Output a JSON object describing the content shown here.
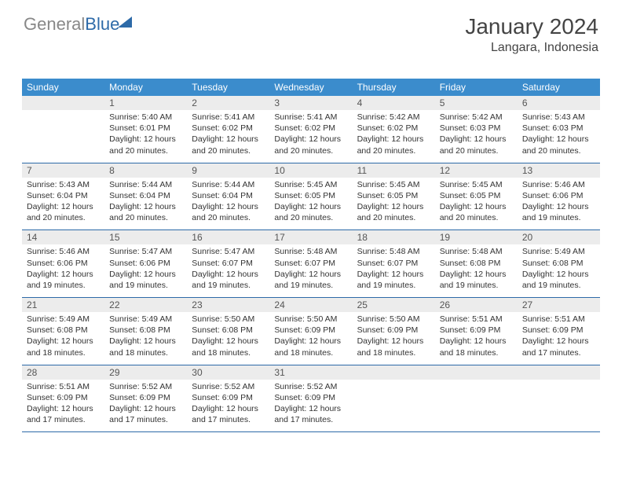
{
  "logo": {
    "part1": "General",
    "part2": "Blue"
  },
  "title": "January 2024",
  "location": "Langara, Indonesia",
  "colors": {
    "header_bg": "#3b8ccc",
    "header_text": "#ffffff",
    "daynum_bg": "#ececec",
    "week_border": "#2d6aa8",
    "text": "#333333",
    "logo_gray": "#888888",
    "logo_blue": "#2d6aa8"
  },
  "day_names": [
    "Sunday",
    "Monday",
    "Tuesday",
    "Wednesday",
    "Thursday",
    "Friday",
    "Saturday"
  ],
  "weeks": [
    [
      {
        "n": "",
        "sr": "",
        "ss": "",
        "d1": "",
        "d2": ""
      },
      {
        "n": "1",
        "sr": "Sunrise: 5:40 AM",
        "ss": "Sunset: 6:01 PM",
        "d1": "Daylight: 12 hours",
        "d2": "and 20 minutes."
      },
      {
        "n": "2",
        "sr": "Sunrise: 5:41 AM",
        "ss": "Sunset: 6:02 PM",
        "d1": "Daylight: 12 hours",
        "d2": "and 20 minutes."
      },
      {
        "n": "3",
        "sr": "Sunrise: 5:41 AM",
        "ss": "Sunset: 6:02 PM",
        "d1": "Daylight: 12 hours",
        "d2": "and 20 minutes."
      },
      {
        "n": "4",
        "sr": "Sunrise: 5:42 AM",
        "ss": "Sunset: 6:02 PM",
        "d1": "Daylight: 12 hours",
        "d2": "and 20 minutes."
      },
      {
        "n": "5",
        "sr": "Sunrise: 5:42 AM",
        "ss": "Sunset: 6:03 PM",
        "d1": "Daylight: 12 hours",
        "d2": "and 20 minutes."
      },
      {
        "n": "6",
        "sr": "Sunrise: 5:43 AM",
        "ss": "Sunset: 6:03 PM",
        "d1": "Daylight: 12 hours",
        "d2": "and 20 minutes."
      }
    ],
    [
      {
        "n": "7",
        "sr": "Sunrise: 5:43 AM",
        "ss": "Sunset: 6:04 PM",
        "d1": "Daylight: 12 hours",
        "d2": "and 20 minutes."
      },
      {
        "n": "8",
        "sr": "Sunrise: 5:44 AM",
        "ss": "Sunset: 6:04 PM",
        "d1": "Daylight: 12 hours",
        "d2": "and 20 minutes."
      },
      {
        "n": "9",
        "sr": "Sunrise: 5:44 AM",
        "ss": "Sunset: 6:04 PM",
        "d1": "Daylight: 12 hours",
        "d2": "and 20 minutes."
      },
      {
        "n": "10",
        "sr": "Sunrise: 5:45 AM",
        "ss": "Sunset: 6:05 PM",
        "d1": "Daylight: 12 hours",
        "d2": "and 20 minutes."
      },
      {
        "n": "11",
        "sr": "Sunrise: 5:45 AM",
        "ss": "Sunset: 6:05 PM",
        "d1": "Daylight: 12 hours",
        "d2": "and 20 minutes."
      },
      {
        "n": "12",
        "sr": "Sunrise: 5:45 AM",
        "ss": "Sunset: 6:05 PM",
        "d1": "Daylight: 12 hours",
        "d2": "and 20 minutes."
      },
      {
        "n": "13",
        "sr": "Sunrise: 5:46 AM",
        "ss": "Sunset: 6:06 PM",
        "d1": "Daylight: 12 hours",
        "d2": "and 19 minutes."
      }
    ],
    [
      {
        "n": "14",
        "sr": "Sunrise: 5:46 AM",
        "ss": "Sunset: 6:06 PM",
        "d1": "Daylight: 12 hours",
        "d2": "and 19 minutes."
      },
      {
        "n": "15",
        "sr": "Sunrise: 5:47 AM",
        "ss": "Sunset: 6:06 PM",
        "d1": "Daylight: 12 hours",
        "d2": "and 19 minutes."
      },
      {
        "n": "16",
        "sr": "Sunrise: 5:47 AM",
        "ss": "Sunset: 6:07 PM",
        "d1": "Daylight: 12 hours",
        "d2": "and 19 minutes."
      },
      {
        "n": "17",
        "sr": "Sunrise: 5:48 AM",
        "ss": "Sunset: 6:07 PM",
        "d1": "Daylight: 12 hours",
        "d2": "and 19 minutes."
      },
      {
        "n": "18",
        "sr": "Sunrise: 5:48 AM",
        "ss": "Sunset: 6:07 PM",
        "d1": "Daylight: 12 hours",
        "d2": "and 19 minutes."
      },
      {
        "n": "19",
        "sr": "Sunrise: 5:48 AM",
        "ss": "Sunset: 6:08 PM",
        "d1": "Daylight: 12 hours",
        "d2": "and 19 minutes."
      },
      {
        "n": "20",
        "sr": "Sunrise: 5:49 AM",
        "ss": "Sunset: 6:08 PM",
        "d1": "Daylight: 12 hours",
        "d2": "and 19 minutes."
      }
    ],
    [
      {
        "n": "21",
        "sr": "Sunrise: 5:49 AM",
        "ss": "Sunset: 6:08 PM",
        "d1": "Daylight: 12 hours",
        "d2": "and 18 minutes."
      },
      {
        "n": "22",
        "sr": "Sunrise: 5:49 AM",
        "ss": "Sunset: 6:08 PM",
        "d1": "Daylight: 12 hours",
        "d2": "and 18 minutes."
      },
      {
        "n": "23",
        "sr": "Sunrise: 5:50 AM",
        "ss": "Sunset: 6:08 PM",
        "d1": "Daylight: 12 hours",
        "d2": "and 18 minutes."
      },
      {
        "n": "24",
        "sr": "Sunrise: 5:50 AM",
        "ss": "Sunset: 6:09 PM",
        "d1": "Daylight: 12 hours",
        "d2": "and 18 minutes."
      },
      {
        "n": "25",
        "sr": "Sunrise: 5:50 AM",
        "ss": "Sunset: 6:09 PM",
        "d1": "Daylight: 12 hours",
        "d2": "and 18 minutes."
      },
      {
        "n": "26",
        "sr": "Sunrise: 5:51 AM",
        "ss": "Sunset: 6:09 PM",
        "d1": "Daylight: 12 hours",
        "d2": "and 18 minutes."
      },
      {
        "n": "27",
        "sr": "Sunrise: 5:51 AM",
        "ss": "Sunset: 6:09 PM",
        "d1": "Daylight: 12 hours",
        "d2": "and 17 minutes."
      }
    ],
    [
      {
        "n": "28",
        "sr": "Sunrise: 5:51 AM",
        "ss": "Sunset: 6:09 PM",
        "d1": "Daylight: 12 hours",
        "d2": "and 17 minutes."
      },
      {
        "n": "29",
        "sr": "Sunrise: 5:52 AM",
        "ss": "Sunset: 6:09 PM",
        "d1": "Daylight: 12 hours",
        "d2": "and 17 minutes."
      },
      {
        "n": "30",
        "sr": "Sunrise: 5:52 AM",
        "ss": "Sunset: 6:09 PM",
        "d1": "Daylight: 12 hours",
        "d2": "and 17 minutes."
      },
      {
        "n": "31",
        "sr": "Sunrise: 5:52 AM",
        "ss": "Sunset: 6:09 PM",
        "d1": "Daylight: 12 hours",
        "d2": "and 17 minutes."
      },
      {
        "n": "",
        "sr": "",
        "ss": "",
        "d1": "",
        "d2": ""
      },
      {
        "n": "",
        "sr": "",
        "ss": "",
        "d1": "",
        "d2": ""
      },
      {
        "n": "",
        "sr": "",
        "ss": "",
        "d1": "",
        "d2": ""
      }
    ]
  ]
}
